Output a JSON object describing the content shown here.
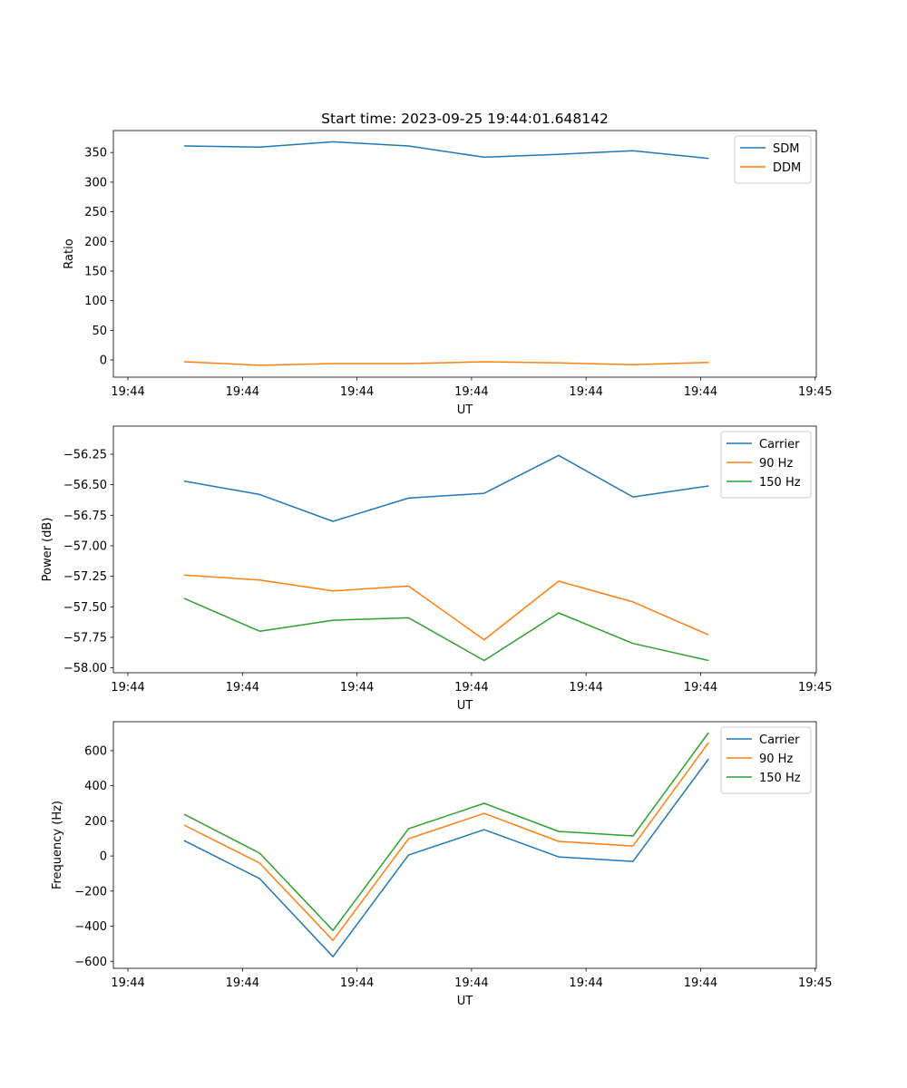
{
  "chart_data": [
    {
      "type": "line",
      "title": "Start time: 2023-09-25 19:44:01.648142",
      "xlabel": "UT",
      "ylabel": "Ratio",
      "xlim": [
        -1.27,
        60.1
      ],
      "ylim": [
        -29,
        387
      ],
      "xticks": [
        0,
        10,
        20,
        30,
        40,
        50,
        60
      ],
      "xtick_labels": [
        "19:44",
        "19:44",
        "19:44",
        "19:44",
        "19:44",
        "19:44",
        "19:45"
      ],
      "yticks": [
        0,
        50,
        100,
        150,
        200,
        250,
        300,
        350
      ],
      "ytick_labels": [
        "0",
        "50",
        "100",
        "150",
        "200",
        "250",
        "300",
        "350"
      ],
      "x": [
        4.9,
        11.5,
        17.9,
        24.5,
        31.1,
        37.6,
        44.1,
        50.7
      ],
      "legend": "top-right",
      "series": [
        {
          "name": "SDM",
          "color": "#1f77b4",
          "values": [
            361,
            359,
            368,
            361,
            342,
            347,
            353,
            340
          ]
        },
        {
          "name": "DDM",
          "color": "#ff7f0e",
          "values": [
            -3,
            -9,
            -6,
            -6,
            -3,
            -5,
            -8,
            -4
          ]
        }
      ]
    },
    {
      "type": "line",
      "title": "",
      "xlabel": "UT",
      "ylabel": "Power (dB)",
      "xlim": [
        -1.27,
        60.1
      ],
      "ylim": [
        -58.04,
        -56.02
      ],
      "xticks": [
        0,
        10,
        20,
        30,
        40,
        50,
        60
      ],
      "xtick_labels": [
        "19:44",
        "19:44",
        "19:44",
        "19:44",
        "19:44",
        "19:44",
        "19:45"
      ],
      "yticks": [
        -58.0,
        -57.75,
        -57.5,
        -57.25,
        -57.0,
        -56.75,
        -56.5,
        -56.25
      ],
      "ytick_labels": [
        "−58.00",
        "−57.75",
        "−57.50",
        "−57.25",
        "−57.00",
        "−56.75",
        "−56.50",
        "−56.25"
      ],
      "x": [
        4.9,
        11.5,
        17.9,
        24.5,
        31.1,
        37.6,
        44.1,
        50.7
      ],
      "legend": "top-right",
      "series": [
        {
          "name": "Carrier",
          "color": "#1f77b4",
          "values": [
            -56.47,
            -56.58,
            -56.8,
            -56.61,
            -56.57,
            -56.26,
            -56.6,
            -56.51
          ]
        },
        {
          "name": "90 Hz",
          "color": "#ff7f0e",
          "values": [
            -57.24,
            -57.28,
            -57.37,
            -57.33,
            -57.77,
            -57.29,
            -57.46,
            -57.73
          ]
        },
        {
          "name": "150 Hz",
          "color": "#2ca02c",
          "values": [
            -57.43,
            -57.7,
            -57.61,
            -57.59,
            -57.94,
            -57.55,
            -57.8,
            -57.94
          ]
        }
      ]
    },
    {
      "type": "line",
      "title": "",
      "xlabel": "UT",
      "ylabel": "Frequency (Hz)",
      "xlim": [
        -1.27,
        60.1
      ],
      "ylim": [
        -640,
        765
      ],
      "xticks": [
        0,
        10,
        20,
        30,
        40,
        50,
        60
      ],
      "xtick_labels": [
        "19:44",
        "19:44",
        "19:44",
        "19:44",
        "19:44",
        "19:44",
        "19:45"
      ],
      "yticks": [
        -600,
        -400,
        -200,
        0,
        200,
        400,
        600
      ],
      "ytick_labels": [
        "−600",
        "−400",
        "−200",
        "0",
        "200",
        "400",
        "600"
      ],
      "x": [
        4.9,
        11.5,
        17.9,
        24.5,
        31.1,
        37.6,
        44.1,
        50.7
      ],
      "legend": "top-right",
      "series": [
        {
          "name": "Carrier",
          "color": "#1f77b4",
          "values": [
            88,
            -129,
            -574,
            5,
            150,
            -5,
            -31,
            553
          ]
        },
        {
          "name": "90 Hz",
          "color": "#ff7f0e",
          "values": [
            176,
            -41,
            -481,
            98,
            243,
            83,
            57,
            646
          ]
        },
        {
          "name": "150 Hz",
          "color": "#2ca02c",
          "values": [
            238,
            16,
            -424,
            155,
            300,
            140,
            114,
            703
          ]
        }
      ]
    }
  ]
}
